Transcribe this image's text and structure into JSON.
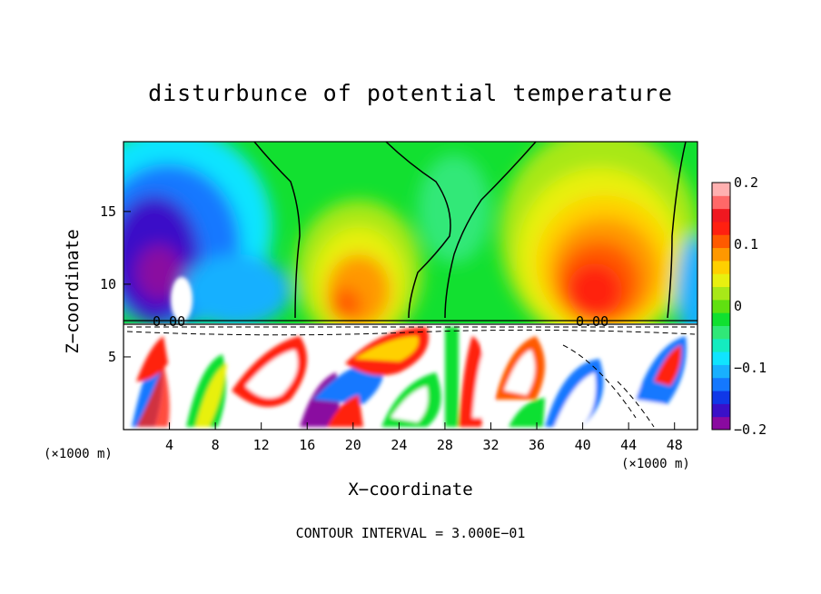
{
  "chart_data": {
    "type": "heatmap",
    "title": "disturbunce of potential temperature",
    "xlabel": "X−coordinate",
    "ylabel": "Z−coordinate",
    "x_unit_left": "(×1000 m)",
    "x_unit_right": "(×1000 m)",
    "x_ticks": [
      "4",
      "8",
      "12",
      "16",
      "20",
      "24",
      "28",
      "32",
      "36",
      "40",
      "44",
      "48"
    ],
    "x_tick_values": [
      4,
      8,
      12,
      16,
      20,
      24,
      28,
      32,
      36,
      40,
      44,
      48
    ],
    "y_ticks": [
      "5",
      "10",
      "15"
    ],
    "y_tick_values": [
      5,
      10,
      15
    ],
    "xlim": [
      0,
      50
    ],
    "ylim": [
      0,
      19.8
    ],
    "colorbar": {
      "ticks": [
        "0.2",
        "0.1",
        "0",
        "−0.1",
        "−0.2"
      ],
      "tick_values": [
        0.2,
        0.1,
        0,
        -0.1,
        -0.2
      ],
      "range": [
        -0.2,
        0.2
      ],
      "colors": [
        "#8a0aa0",
        "#3a10c8",
        "#1038e8",
        "#1478ff",
        "#18b0ff",
        "#10e4ff",
        "#14ecc0",
        "#30e878",
        "#10e030",
        "#60e010",
        "#a8e818",
        "#e8f010",
        "#ffd000",
        "#ff9800",
        "#ff5a00",
        "#ff2010",
        "#f01820",
        "#ff6868",
        "#ffb0b0"
      ]
    },
    "contour_labels": [
      "0.00",
      "0.00"
    ],
    "contour_interval": "CONTOUR INTERVAL = 3.000E−01"
  }
}
